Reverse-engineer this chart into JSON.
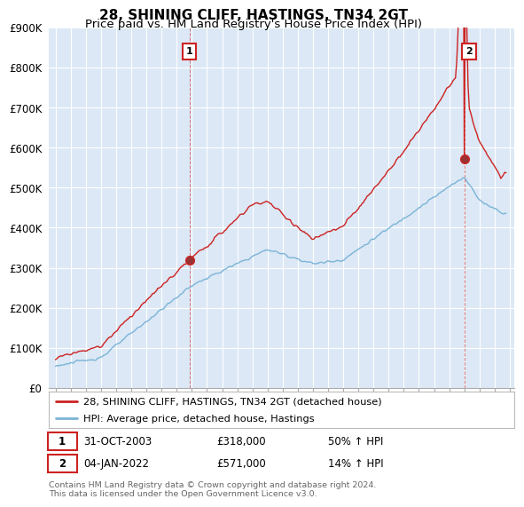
{
  "title": "28, SHINING CLIFF, HASTINGS, TN34 2GT",
  "subtitle": "Price paid vs. HM Land Registry's House Price Index (HPI)",
  "ylim": [
    0,
    900000
  ],
  "yticks": [
    0,
    100000,
    200000,
    300000,
    400000,
    500000,
    600000,
    700000,
    800000,
    900000
  ],
  "ytick_labels": [
    "£0",
    "£100K",
    "£200K",
    "£300K",
    "£400K",
    "£500K",
    "£600K",
    "£700K",
    "£800K",
    "£900K"
  ],
  "hpi_color": "#7ab4d8",
  "price_color": "#cc2222",
  "chart_bg": "#dce8f5",
  "sale1_date": "31-OCT-2003",
  "sale1_price": 318000,
  "sale1_year": 2003.833,
  "sale2_date": "04-JAN-2022",
  "sale2_price": 571000,
  "sale2_year": 2022.02,
  "legend_line1": "28, SHINING CLIFF, HASTINGS, TN34 2GT (detached house)",
  "legend_line2": "HPI: Average price, detached house, Hastings",
  "footer": "Contains HM Land Registry data © Crown copyright and database right 2024.\nThis data is licensed under the Open Government Licence v3.0.",
  "background_color": "#ffffff",
  "grid_color": "#ffffff",
  "title_fontsize": 11,
  "subtitle_fontsize": 9.5,
  "tick_fontsize": 8.5
}
